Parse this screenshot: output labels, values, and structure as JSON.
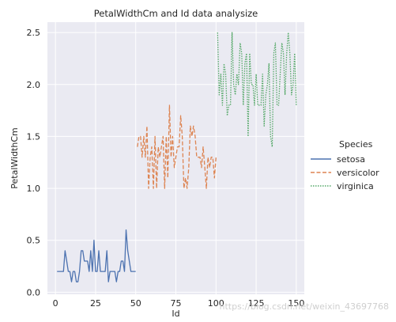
{
  "chart_data": {
    "type": "line",
    "title": "PetalWidthCm and Id data analysize",
    "xlabel": "Id",
    "ylabel": "PetalWidthCm",
    "xlim": [
      -5,
      155
    ],
    "ylim": [
      -0.02,
      2.6
    ],
    "xticks": [
      0,
      25,
      50,
      75,
      100,
      125,
      150
    ],
    "yticks": [
      0.0,
      0.5,
      1.0,
      1.5,
      2.0,
      2.5
    ],
    "xtick_labels": [
      "0",
      "25",
      "50",
      "75",
      "100",
      "125",
      "150"
    ],
    "ytick_labels": [
      "0.0",
      "0.5",
      "1.0",
      "1.5",
      "2.0",
      "2.5"
    ],
    "grid": true,
    "legend": {
      "title": "Species",
      "placement": "outside-right"
    },
    "series": [
      {
        "name": "setosa",
        "color": "#4c72b0",
        "dash": "solid",
        "x": [
          1,
          2,
          3,
          4,
          5,
          6,
          7,
          8,
          9,
          10,
          11,
          12,
          13,
          14,
          15,
          16,
          17,
          18,
          19,
          20,
          21,
          22,
          23,
          24,
          25,
          26,
          27,
          28,
          29,
          30,
          31,
          32,
          33,
          34,
          35,
          36,
          37,
          38,
          39,
          40,
          41,
          42,
          43,
          44,
          45,
          46,
          47,
          48,
          49,
          50
        ],
        "values": [
          0.2,
          0.2,
          0.2,
          0.2,
          0.2,
          0.4,
          0.3,
          0.2,
          0.2,
          0.1,
          0.2,
          0.2,
          0.1,
          0.1,
          0.2,
          0.4,
          0.4,
          0.3,
          0.3,
          0.3,
          0.2,
          0.4,
          0.2,
          0.5,
          0.2,
          0.2,
          0.4,
          0.2,
          0.2,
          0.2,
          0.2,
          0.4,
          0.1,
          0.2,
          0.2,
          0.2,
          0.2,
          0.1,
          0.2,
          0.2,
          0.3,
          0.3,
          0.2,
          0.6,
          0.4,
          0.3,
          0.2,
          0.2,
          0.2,
          0.2
        ]
      },
      {
        "name": "versicolor",
        "color": "#dd8452",
        "dash": "dashed",
        "x": [
          51,
          52,
          53,
          54,
          55,
          56,
          57,
          58,
          59,
          60,
          61,
          62,
          63,
          64,
          65,
          66,
          67,
          68,
          69,
          70,
          71,
          72,
          73,
          74,
          75,
          76,
          77,
          78,
          79,
          80,
          81,
          82,
          83,
          84,
          85,
          86,
          87,
          88,
          89,
          90,
          91,
          92,
          93,
          94,
          95,
          96,
          97,
          98,
          99,
          100
        ],
        "values": [
          1.4,
          1.5,
          1.5,
          1.3,
          1.5,
          1.3,
          1.6,
          1.0,
          1.3,
          1.4,
          1.0,
          1.5,
          1.0,
          1.4,
          1.3,
          1.4,
          1.5,
          1.0,
          1.5,
          1.1,
          1.8,
          1.3,
          1.5,
          1.2,
          1.3,
          1.4,
          1.4,
          1.7,
          1.5,
          1.0,
          1.1,
          1.0,
          1.2,
          1.6,
          1.5,
          1.6,
          1.5,
          1.3,
          1.3,
          1.3,
          1.2,
          1.4,
          1.2,
          1.0,
          1.3,
          1.2,
          1.3,
          1.3,
          1.1,
          1.3
        ]
      },
      {
        "name": "virginica",
        "color": "#55a868",
        "dash": "dotted",
        "x": [
          101,
          102,
          103,
          104,
          105,
          106,
          107,
          108,
          109,
          110,
          111,
          112,
          113,
          114,
          115,
          116,
          117,
          118,
          119,
          120,
          121,
          122,
          123,
          124,
          125,
          126,
          127,
          128,
          129,
          130,
          131,
          132,
          133,
          134,
          135,
          136,
          137,
          138,
          139,
          140,
          141,
          142,
          143,
          144,
          145,
          146,
          147,
          148,
          149,
          150
        ],
        "values": [
          2.5,
          1.9,
          2.1,
          1.8,
          2.2,
          2.1,
          1.7,
          1.8,
          1.8,
          2.5,
          2.0,
          1.9,
          2.1,
          2.0,
          2.4,
          2.3,
          1.8,
          2.2,
          2.3,
          1.5,
          2.3,
          2.0,
          2.0,
          1.8,
          2.1,
          1.8,
          1.8,
          1.8,
          2.1,
          1.6,
          1.9,
          2.0,
          2.2,
          1.5,
          1.4,
          2.3,
          2.4,
          1.8,
          1.8,
          2.1,
          2.4,
          2.3,
          1.9,
          2.3,
          2.5,
          2.3,
          1.9,
          2.0,
          2.3,
          1.8
        ]
      }
    ]
  },
  "watermark": "https://blog.csdn.net/weixin_43697768"
}
